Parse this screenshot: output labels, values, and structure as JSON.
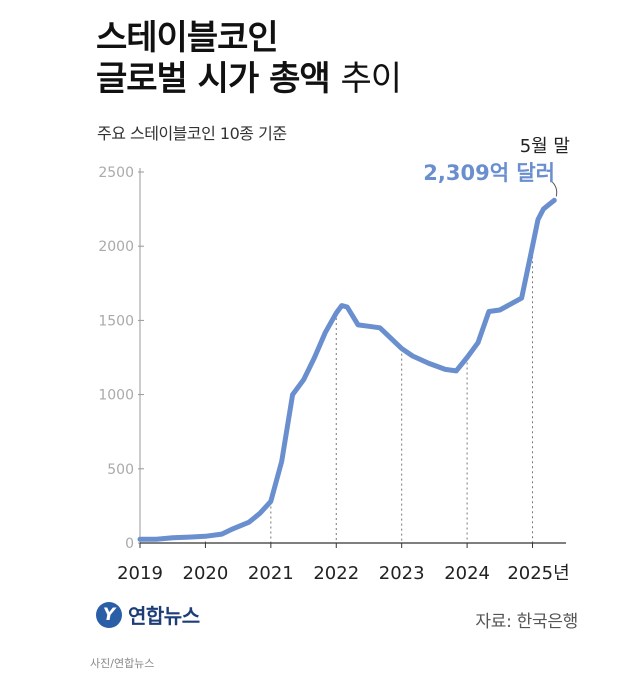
{
  "title": {
    "line1": "스테이블코인",
    "line2_bold": "글로벌 시가 총액",
    "line2_light": "추이"
  },
  "subtitle": "주요 스테이블코인 10종 기준",
  "annotation": {
    "label": "5월 말",
    "value": "2,309억 달러"
  },
  "source": "자료: 한국은행",
  "logo": {
    "text": "연합뉴스",
    "mark": "Y"
  },
  "credit": "사진/연합뉴스",
  "colors": {
    "line": "#6a8fcf",
    "accent": "#6a8fcf",
    "axis": "#999999",
    "grid": "#dddddd",
    "tick_label": "#aaaaaa"
  },
  "chart_data": {
    "type": "line",
    "title": "스테이블코인 글로벌 시가 총액 추이",
    "subtitle": "주요 스테이블코인 10종 기준",
    "xlabel": "",
    "ylabel": "",
    "ylim": [
      0,
      2500
    ],
    "y_ticks": [
      0,
      500,
      1000,
      1500,
      2000,
      2500
    ],
    "x_tick_labels": [
      "2019",
      "2020",
      "2021",
      "2022",
      "2023",
      "2024",
      "2025년"
    ],
    "grid": {
      "x": "dotted at year marks",
      "y": false
    },
    "series": [
      {
        "values": [
          {
            "x": "2019-01",
            "y": 25
          },
          {
            "x": "2019-04",
            "y": 25
          },
          {
            "x": "2019-07",
            "y": 35
          },
          {
            "x": "2019-10",
            "y": 40
          },
          {
            "x": "2020-01",
            "y": 45
          },
          {
            "x": "2020-04",
            "y": 60
          },
          {
            "x": "2020-06",
            "y": 95
          },
          {
            "x": "2020-09",
            "y": 140
          },
          {
            "x": "2020-11",
            "y": 200
          },
          {
            "x": "2021-01",
            "y": 280
          },
          {
            "x": "2021-03",
            "y": 550
          },
          {
            "x": "2021-05",
            "y": 1000
          },
          {
            "x": "2021-07",
            "y": 1100
          },
          {
            "x": "2021-09",
            "y": 1250
          },
          {
            "x": "2021-11",
            "y": 1420
          },
          {
            "x": "2022-01",
            "y": 1550
          },
          {
            "x": "2022-02",
            "y": 1600
          },
          {
            "x": "2022-03",
            "y": 1590
          },
          {
            "x": "2022-05",
            "y": 1470
          },
          {
            "x": "2022-07",
            "y": 1460
          },
          {
            "x": "2022-09",
            "y": 1450
          },
          {
            "x": "2022-11",
            "y": 1380
          },
          {
            "x": "2023-01",
            "y": 1310
          },
          {
            "x": "2023-03",
            "y": 1260
          },
          {
            "x": "2023-06",
            "y": 1210
          },
          {
            "x": "2023-09",
            "y": 1170
          },
          {
            "x": "2023-11",
            "y": 1160
          },
          {
            "x": "2024-01",
            "y": 1250
          },
          {
            "x": "2024-03",
            "y": 1350
          },
          {
            "x": "2024-05",
            "y": 1560
          },
          {
            "x": "2024-07",
            "y": 1570
          },
          {
            "x": "2024-09",
            "y": 1610
          },
          {
            "x": "2024-11",
            "y": 1650
          },
          {
            "x": "2025-01",
            "y": 2000
          },
          {
            "x": "2025-02",
            "y": 2180
          },
          {
            "x": "2025-03",
            "y": 2250
          },
          {
            "x": "2025-04",
            "y": 2280
          },
          {
            "x": "2025-05",
            "y": 2309
          }
        ]
      }
    ]
  }
}
